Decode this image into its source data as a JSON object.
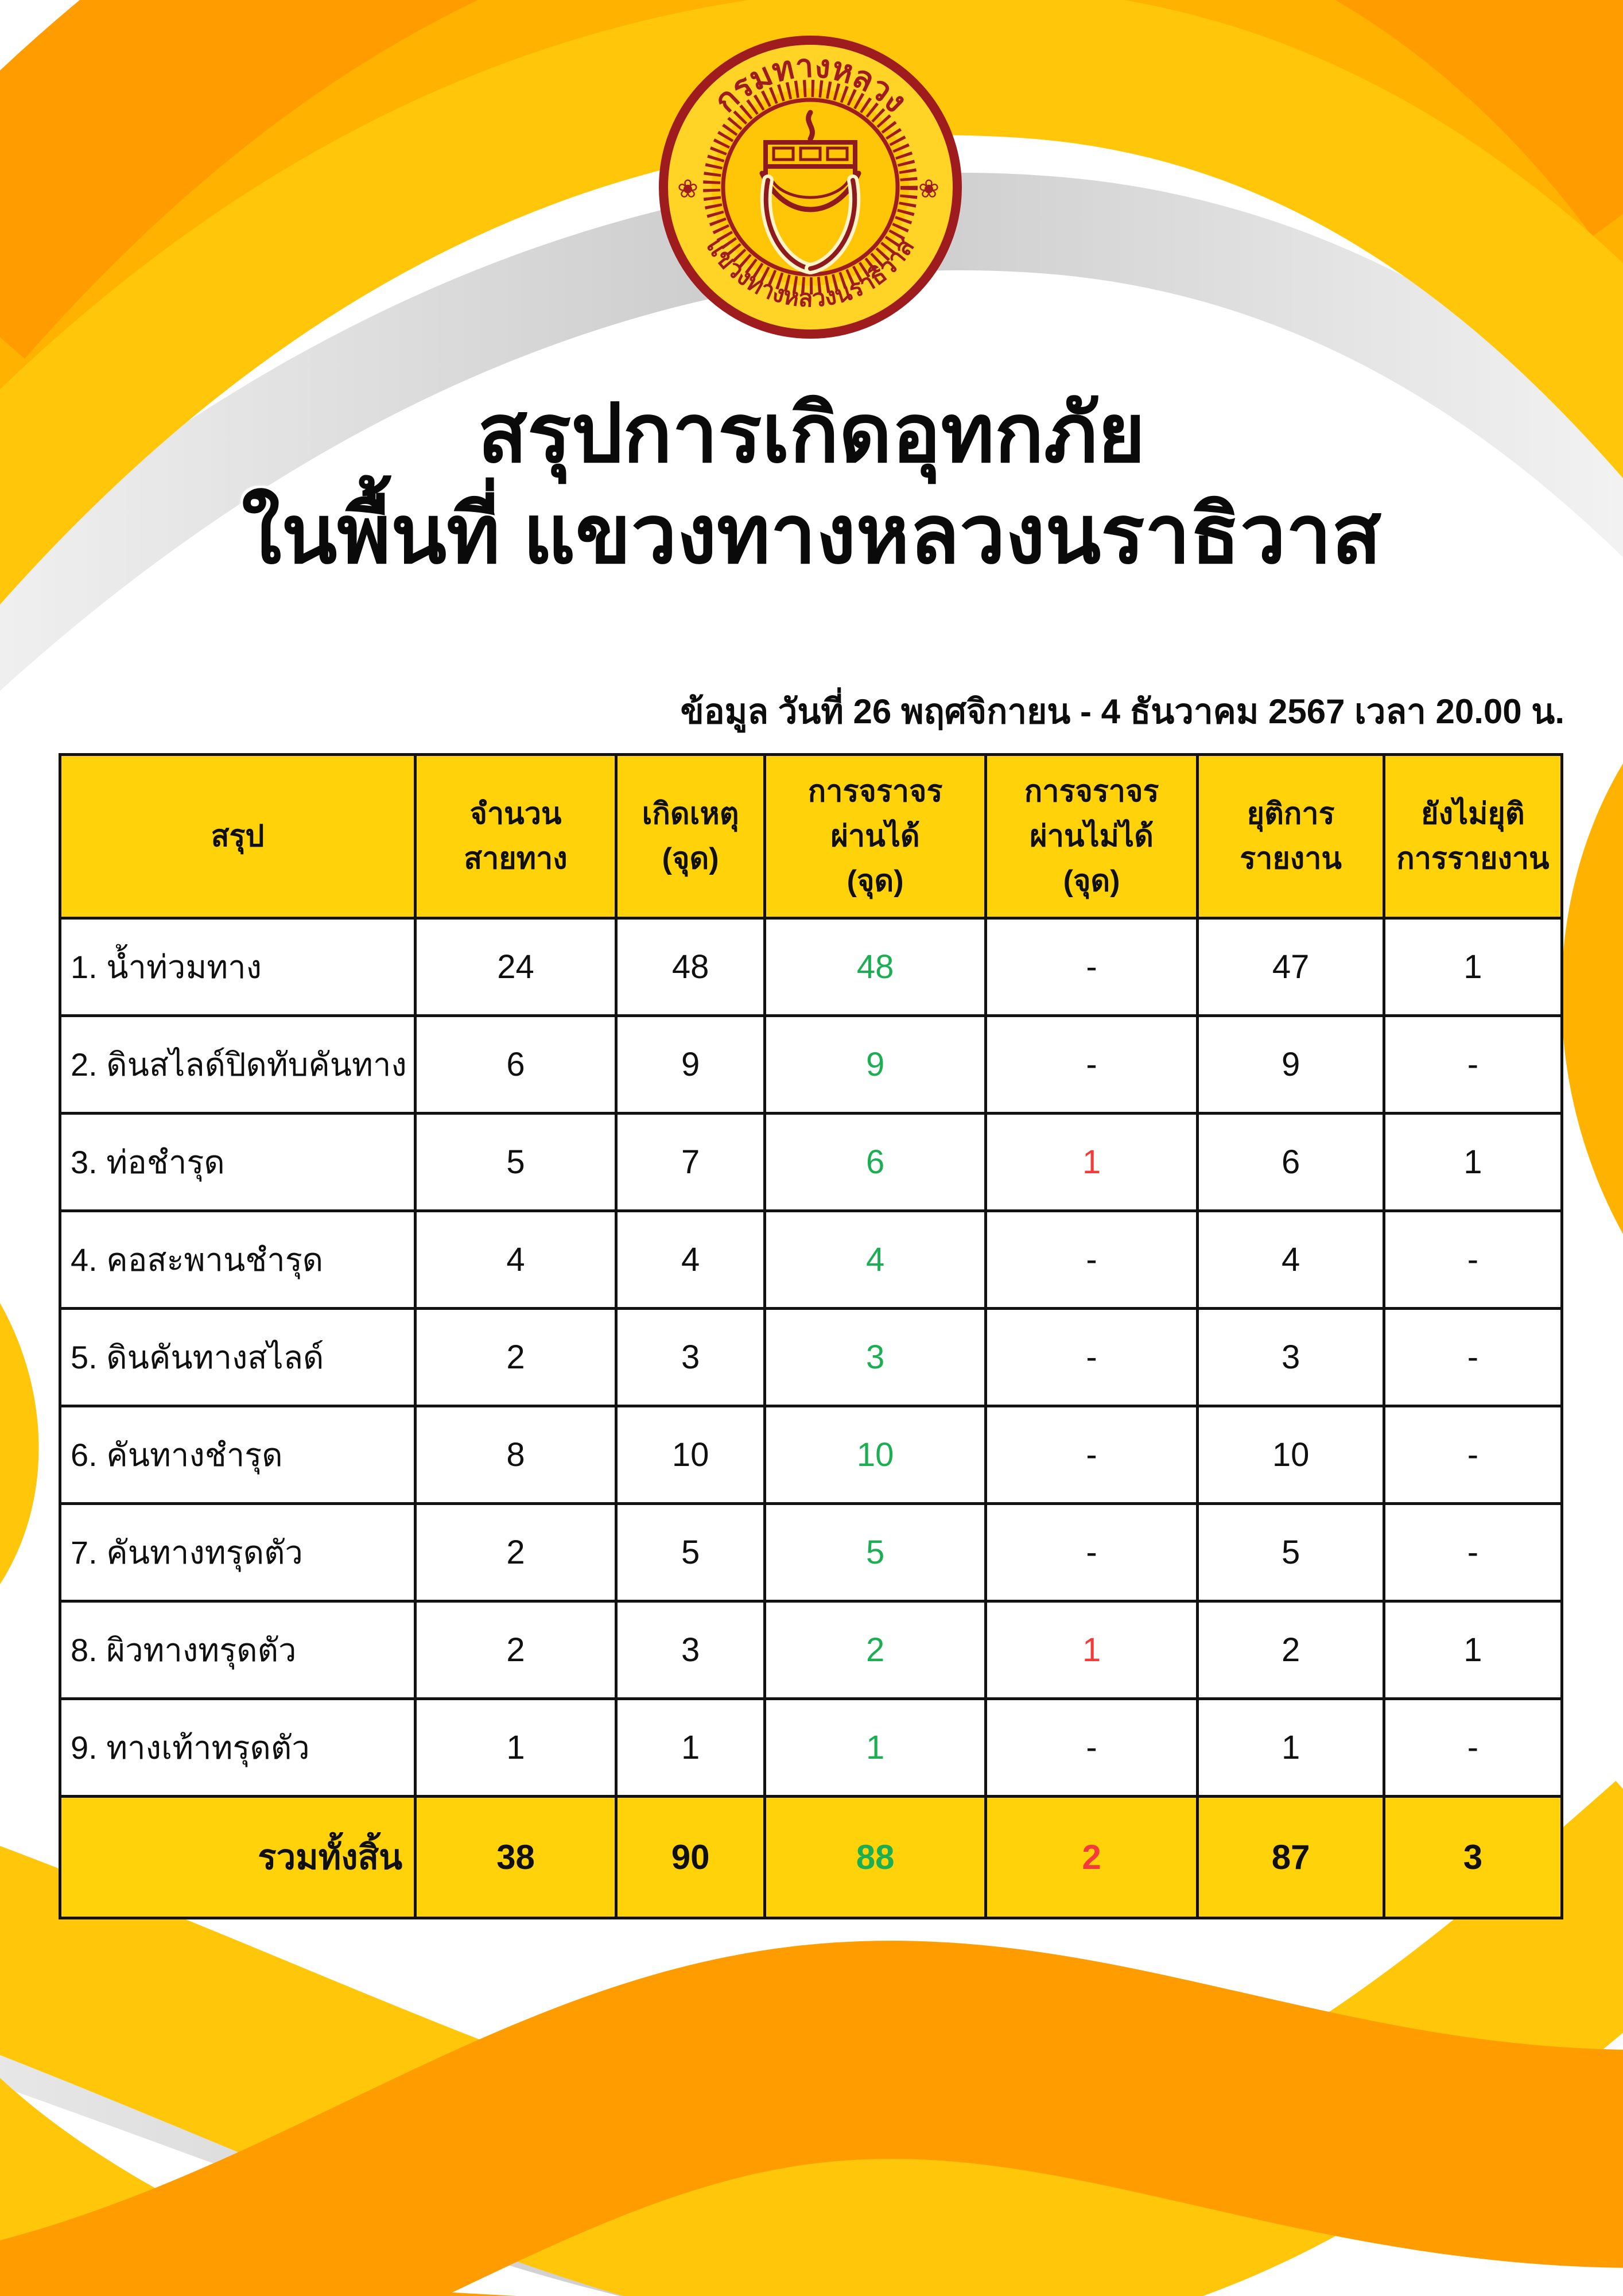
{
  "colors": {
    "orange": "#FF9C00",
    "amber": "#FFB200",
    "yellow": "#FFC60A",
    "gold_header": "#FFD20A",
    "green": "#1BAE52",
    "red": "#F43B3B",
    "seal_ring_red": "#9E1B1E",
    "seal_gold": "#FFD427",
    "gray_ribbon": "#D4D4D4",
    "text_black": "#0A0A0A"
  },
  "seal": {
    "top_text": "กรมทางหลวง",
    "bottom_text": "แขวงทางหลวงนราธิวาส"
  },
  "title": {
    "line1": "สรุปการเกิดอุทกภัย",
    "line2": "ในพื้นที่ แขวงทางหลวงนราธิวาส"
  },
  "date_line": "ข้อมูล วันที่ 26 พฤศจิกายน - 4 ธันวาคม 2567 เวลา 20.00 น.",
  "table": {
    "columns": [
      {
        "lines": [
          "สรุป"
        ]
      },
      {
        "lines": [
          "จำนวน",
          "สายทาง"
        ]
      },
      {
        "lines": [
          "เกิดเหตุ",
          "(จุด)"
        ]
      },
      {
        "lines": [
          "การจราจร",
          "ผ่านได้",
          "(จุด)"
        ]
      },
      {
        "lines": [
          "การจราจร",
          "ผ่านไม่ได้",
          "(จุด)"
        ]
      },
      {
        "lines": [
          "ยุติการ",
          "รายงาน"
        ]
      },
      {
        "lines": [
          "ยังไม่ยุติ",
          "การรายงาน"
        ]
      }
    ],
    "rows": [
      {
        "label": "1. น้ำท่วมทาง",
        "cells": [
          {
            "t": "24"
          },
          {
            "t": "48"
          },
          {
            "t": "48",
            "c": "green"
          },
          {
            "t": "-"
          },
          {
            "t": "47"
          },
          {
            "t": "1"
          }
        ]
      },
      {
        "label": "2. ดินสไลด์ปิดทับคันทาง",
        "cells": [
          {
            "t": "6"
          },
          {
            "t": "9"
          },
          {
            "t": "9",
            "c": "green"
          },
          {
            "t": "-"
          },
          {
            "t": "9"
          },
          {
            "t": "-"
          }
        ]
      },
      {
        "label": "3. ท่อชำรุด",
        "cells": [
          {
            "t": "5"
          },
          {
            "t": "7"
          },
          {
            "t": "6",
            "c": "green"
          },
          {
            "t": "1",
            "c": "red"
          },
          {
            "t": "6"
          },
          {
            "t": "1"
          }
        ]
      },
      {
        "label": "4. คอสะพานชำรุด",
        "cells": [
          {
            "t": "4"
          },
          {
            "t": "4"
          },
          {
            "t": "4",
            "c": "green"
          },
          {
            "t": "-"
          },
          {
            "t": "4"
          },
          {
            "t": "-"
          }
        ]
      },
      {
        "label": "5. ดินคันทางสไลด์",
        "cells": [
          {
            "t": "2"
          },
          {
            "t": "3"
          },
          {
            "t": "3",
            "c": "green"
          },
          {
            "t": "-"
          },
          {
            "t": "3"
          },
          {
            "t": "-"
          }
        ]
      },
      {
        "label": "6. คันทางชำรุด",
        "cells": [
          {
            "t": "8"
          },
          {
            "t": "10"
          },
          {
            "t": "10",
            "c": "green"
          },
          {
            "t": "-"
          },
          {
            "t": "10"
          },
          {
            "t": "-"
          }
        ]
      },
      {
        "label": "7. คันทางทรุดตัว",
        "cells": [
          {
            "t": "2"
          },
          {
            "t": "5"
          },
          {
            "t": "5",
            "c": "green"
          },
          {
            "t": "-"
          },
          {
            "t": "5"
          },
          {
            "t": "-"
          }
        ]
      },
      {
        "label": "8. ผิวทางทรุดตัว",
        "cells": [
          {
            "t": "2"
          },
          {
            "t": "3"
          },
          {
            "t": "2",
            "c": "green"
          },
          {
            "t": "1",
            "c": "red"
          },
          {
            "t": "2"
          },
          {
            "t": "1"
          }
        ]
      },
      {
        "label": "9. ทางเท้าทรุดตัว",
        "cells": [
          {
            "t": "1"
          },
          {
            "t": "1"
          },
          {
            "t": "1",
            "c": "green"
          },
          {
            "t": "-"
          },
          {
            "t": "1"
          },
          {
            "t": "-"
          }
        ]
      }
    ],
    "total": {
      "label": "รวมทั้งสิ้น",
      "cells": [
        {
          "t": "38"
        },
        {
          "t": "90"
        },
        {
          "t": "88",
          "c": "green"
        },
        {
          "t": "2",
          "c": "red"
        },
        {
          "t": "87"
        },
        {
          "t": "3"
        }
      ]
    }
  }
}
